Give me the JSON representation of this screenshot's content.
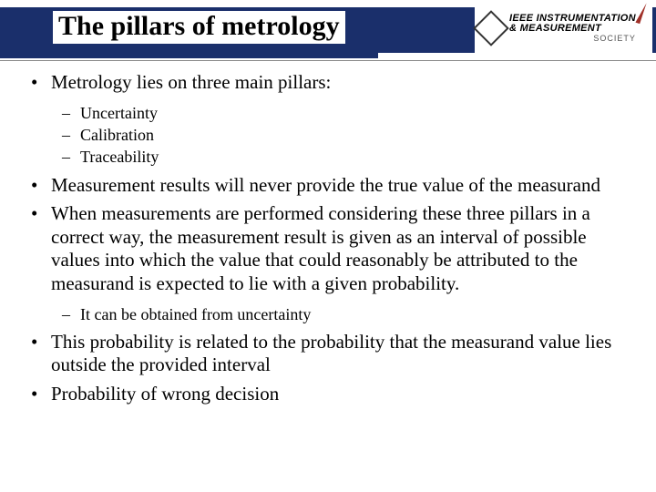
{
  "slide": {
    "title": "The pillars of metrology",
    "logo": {
      "line1": "INSTRUMENTATION",
      "line2": "& MEASUREMENT",
      "line3": "SOCIETY",
      "prefix": "IEEE"
    },
    "bullets": [
      {
        "text": "Metrology lies on three main pillars:",
        "sub": [
          "Uncertainty",
          "Calibration",
          "Traceability"
        ]
      },
      {
        "text": "Measurement results will never provide the true value of the measurand"
      },
      {
        "text": "When measurements are performed considering these three pillars in a correct way, the measurement result is given as an interval of possible values into which the value that could reasonably be attributed to the measurand is expected to lie with a given probability.",
        "sub": [
          "It can be obtained from uncertainty"
        ]
      },
      {
        "text": "This probability is related to the probability that the measurand value lies outside the provided interval"
      },
      {
        "text": "Probability of wrong decision"
      }
    ],
    "colors": {
      "band": "#1a2f6b",
      "text": "#000000",
      "background": "#ffffff",
      "accent": "#a03028"
    },
    "typography": {
      "title_fontsize": 30,
      "body_fontsize": 21,
      "sub_fontsize": 18,
      "family": "Times New Roman"
    }
  }
}
